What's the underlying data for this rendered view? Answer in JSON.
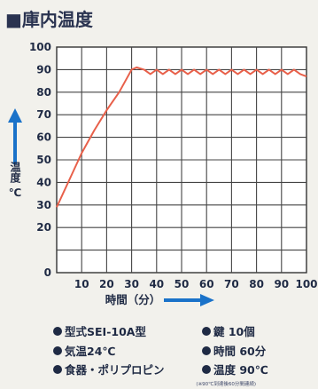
{
  "title": "■庫内温度",
  "chart_data": {
    "type": "line",
    "xlabel": "時間（分）",
    "ylabel": "温度 ℃",
    "x_ticks": [
      10,
      20,
      30,
      40,
      50,
      60,
      70,
      80,
      90,
      100
    ],
    "y_ticks": [
      0,
      20,
      30,
      40,
      50,
      60,
      70,
      80,
      90,
      100
    ],
    "xlim": [
      0,
      100
    ],
    "ylim": [
      0,
      100
    ],
    "grid": true,
    "series": [
      {
        "color": "#e8604a",
        "x": [
          0,
          5,
          10,
          15,
          20,
          25,
          28,
          30,
          32,
          35,
          37.5,
          40,
          42.5,
          45,
          47.5,
          50,
          52.5,
          55,
          57.5,
          60,
          62.5,
          65,
          67.5,
          70,
          72.5,
          75,
          77.5,
          80,
          82.5,
          85,
          87.5,
          90,
          92.5,
          95,
          97.5,
          100
        ],
        "y": [
          29,
          41,
          53,
          63,
          72,
          80,
          86,
          90,
          91,
          90,
          88,
          90,
          88,
          90,
          88,
          90,
          88,
          90,
          88,
          90,
          88,
          90,
          88,
          90,
          88,
          90,
          88,
          90,
          88,
          90,
          88,
          90,
          88,
          90,
          88,
          87
        ]
      }
    ]
  },
  "legend": {
    "model": "型式SEI-10A型",
    "temp": "気温24℃",
    "food": "食器・ポリプロピン",
    "qty": "鍵 10個",
    "time": "時間 60分",
    "settemp": "温度 90℃"
  },
  "footnote": "(※90℃到達後60分間連続)",
  "colors": {
    "axis_arrow": "#1a72c9",
    "line": "#e8604a",
    "text": "#1f2a44"
  }
}
